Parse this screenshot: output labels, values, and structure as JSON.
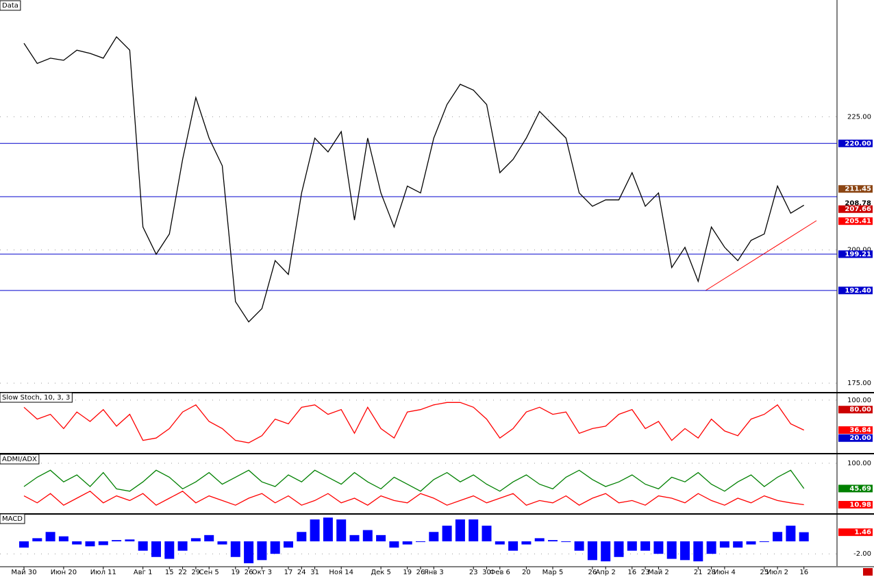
{
  "chart_data": [
    {
      "type": "line",
      "title": "Data",
      "categories": [
        "Май 30",
        null,
        null,
        "Июн 20",
        null,
        null,
        "Июл 11",
        null,
        null,
        "Авг 1",
        null,
        "15",
        "22",
        "29",
        "Сен 5",
        null,
        "19",
        "26",
        "Окт 3",
        null,
        "17",
        "24",
        "31",
        null,
        "Ноя 14",
        null,
        null,
        "Дек 5",
        null,
        "19",
        "26",
        "Янв 3",
        null,
        null,
        "23",
        "30",
        "Фев 6",
        null,
        "20",
        null,
        "Мар 5",
        null,
        null,
        "26",
        "Апр 2",
        null,
        "16",
        "23",
        "Май 2",
        null,
        null,
        "21",
        "28",
        "Июн 4",
        null,
        null,
        "25",
        "Июл 2",
        null,
        "16"
      ],
      "series": [
        {
          "color": "#000000",
          "values": [
            238.8,
            235,
            236,
            235.6,
            237.5,
            236.9,
            236,
            240,
            237.5,
            204.3,
            199.2,
            203,
            217,
            228.6,
            221,
            215.8,
            190.3,
            186.5,
            189,
            198,
            195.4,
            210.7,
            221,
            218.4,
            222.2,
            205.6,
            221,
            210.7,
            204.3,
            212,
            210.7,
            221,
            227.3,
            231.1,
            230,
            227.3,
            214.5,
            217,
            221,
            226,
            223.5,
            221,
            210.7,
            208.2,
            209.4,
            209.4,
            214.5,
            208.2,
            210.7,
            196.7,
            200.5,
            194.1,
            204.3,
            200.5,
            198,
            201.8,
            203,
            212,
            206.9,
            208.4
          ]
        }
      ],
      "ylim": [
        173.6,
        246.4
      ],
      "yticks": [
        {
          "value": 225,
          "label": "225.00"
        },
        {
          "value": 200,
          "label": "200.00"
        },
        {
          "value": 175,
          "label": "175.00"
        }
      ],
      "hlines": [
        220,
        210,
        199.21,
        192.4
      ],
      "markers": [
        {
          "value": 220,
          "label": "220.00",
          "color": "#0000cc"
        },
        {
          "value": 211.45,
          "label": "211.45",
          "color": "#8b4513"
        },
        {
          "value": 208.78,
          "label": "208.78",
          "color": "#ffffff"
        },
        {
          "value": 207.66,
          "label": "207.66",
          "color": "#cc0000"
        },
        {
          "value": 205.41,
          "label": "205.41",
          "color": "#ff0000"
        },
        {
          "value": 199.21,
          "label": "199.21",
          "color": "#0000cc"
        },
        {
          "value": 192.4,
          "label": "192.40",
          "color": "#0000cc"
        }
      ]
    },
    {
      "type": "line",
      "title": "Slow Stoch, 10, 3, 3",
      "series": [
        {
          "color": "#ff0000",
          "values": [
            85,
            60,
            70,
            40,
            75,
            55,
            80,
            45,
            70,
            15,
            20,
            40,
            75,
            90,
            55,
            40,
            15,
            10,
            25,
            60,
            50,
            85,
            90,
            70,
            80,
            30,
            85,
            40,
            20,
            75,
            80,
            90,
            95,
            95,
            85,
            60,
            20,
            40,
            75,
            85,
            70,
            75,
            30,
            40,
            45,
            70,
            80,
            40,
            55,
            15,
            40,
            20,
            60,
            35,
            25,
            60,
            70,
            90,
            50,
            36.84
          ]
        }
      ],
      "ylim": [
        -7.1,
        111.4
      ],
      "yticks": [
        {
          "value": 100,
          "label": "100.00"
        }
      ],
      "markers": [
        {
          "value": 80,
          "label": "80.00",
          "color": "#cc0000"
        },
        {
          "value": 36.84,
          "label": "36.84",
          "color": "#ff0000"
        },
        {
          "value": 20,
          "label": "20.00",
          "color": "#0000cc"
        }
      ]
    },
    {
      "type": "line",
      "title": "ADMI/ADX",
      "series": [
        {
          "color": "#008000",
          "values": [
            50,
            70,
            85,
            60,
            75,
            50,
            80,
            45,
            40,
            60,
            85,
            70,
            45,
            60,
            80,
            55,
            70,
            85,
            60,
            50,
            75,
            60,
            85,
            70,
            55,
            80,
            60,
            45,
            70,
            55,
            40,
            65,
            80,
            60,
            75,
            55,
            40,
            60,
            75,
            55,
            45,
            70,
            85,
            65,
            50,
            60,
            75,
            55,
            45,
            70,
            60,
            80,
            55,
            40,
            60,
            75,
            50,
            70,
            85,
            45.69
          ]
        },
        {
          "color": "#ff0000",
          "values": [
            30,
            15,
            35,
            10,
            25,
            40,
            15,
            30,
            20,
            35,
            10,
            25,
            40,
            15,
            30,
            20,
            10,
            25,
            35,
            15,
            30,
            10,
            20,
            35,
            15,
            25,
            10,
            30,
            20,
            15,
            35,
            25,
            10,
            20,
            30,
            15,
            25,
            35,
            10,
            20,
            15,
            30,
            10,
            25,
            35,
            15,
            20,
            10,
            30,
            25,
            15,
            35,
            20,
            10,
            25,
            15,
            30,
            20,
            15,
            10.98
          ]
        }
      ],
      "ylim": [
        -5.9,
        114.7
      ],
      "yticks": [
        {
          "value": 100,
          "label": "100.00"
        }
      ],
      "markers": [
        {
          "value": 45.69,
          "label": "45.69",
          "color": "#008000"
        },
        {
          "value": 10.98,
          "label": "10.98",
          "color": "#ff0000"
        }
      ]
    },
    {
      "type": "bar",
      "title": "MACD",
      "color": "#0000ff",
      "series": [
        {
          "color": "#0000ff",
          "values": [
            -1,
            0.5,
            1.5,
            0.8,
            -0.5,
            -0.8,
            -0.6,
            0.2,
            0.3,
            -1.5,
            -2.5,
            -2.8,
            -1.5,
            0.5,
            1,
            -0.5,
            -2.5,
            -3.5,
            -3,
            -2,
            -1,
            1.5,
            3.5,
            3.8,
            3.5,
            1,
            1.8,
            1,
            -1,
            -0.5,
            0,
            1.5,
            2.5,
            3.5,
            3.5,
            2.5,
            -0.5,
            -1.5,
            -0.5,
            0.5,
            0.2,
            0,
            -1.5,
            -3,
            -3.2,
            -2.5,
            -1.5,
            -1.5,
            -2,
            -2.8,
            -3,
            -3.2,
            -2,
            -1,
            -1,
            -0.5,
            0,
            1.5,
            2.5,
            1.46
          ]
        }
      ],
      "ylim": [
        -3.84,
        4.05
      ],
      "yticks": [
        {
          "value": -2,
          "label": "-2.00"
        }
      ],
      "markers": [
        {
          "value": 1.46,
          "label": "1.46",
          "color": "#ff0000"
        }
      ]
    }
  ]
}
